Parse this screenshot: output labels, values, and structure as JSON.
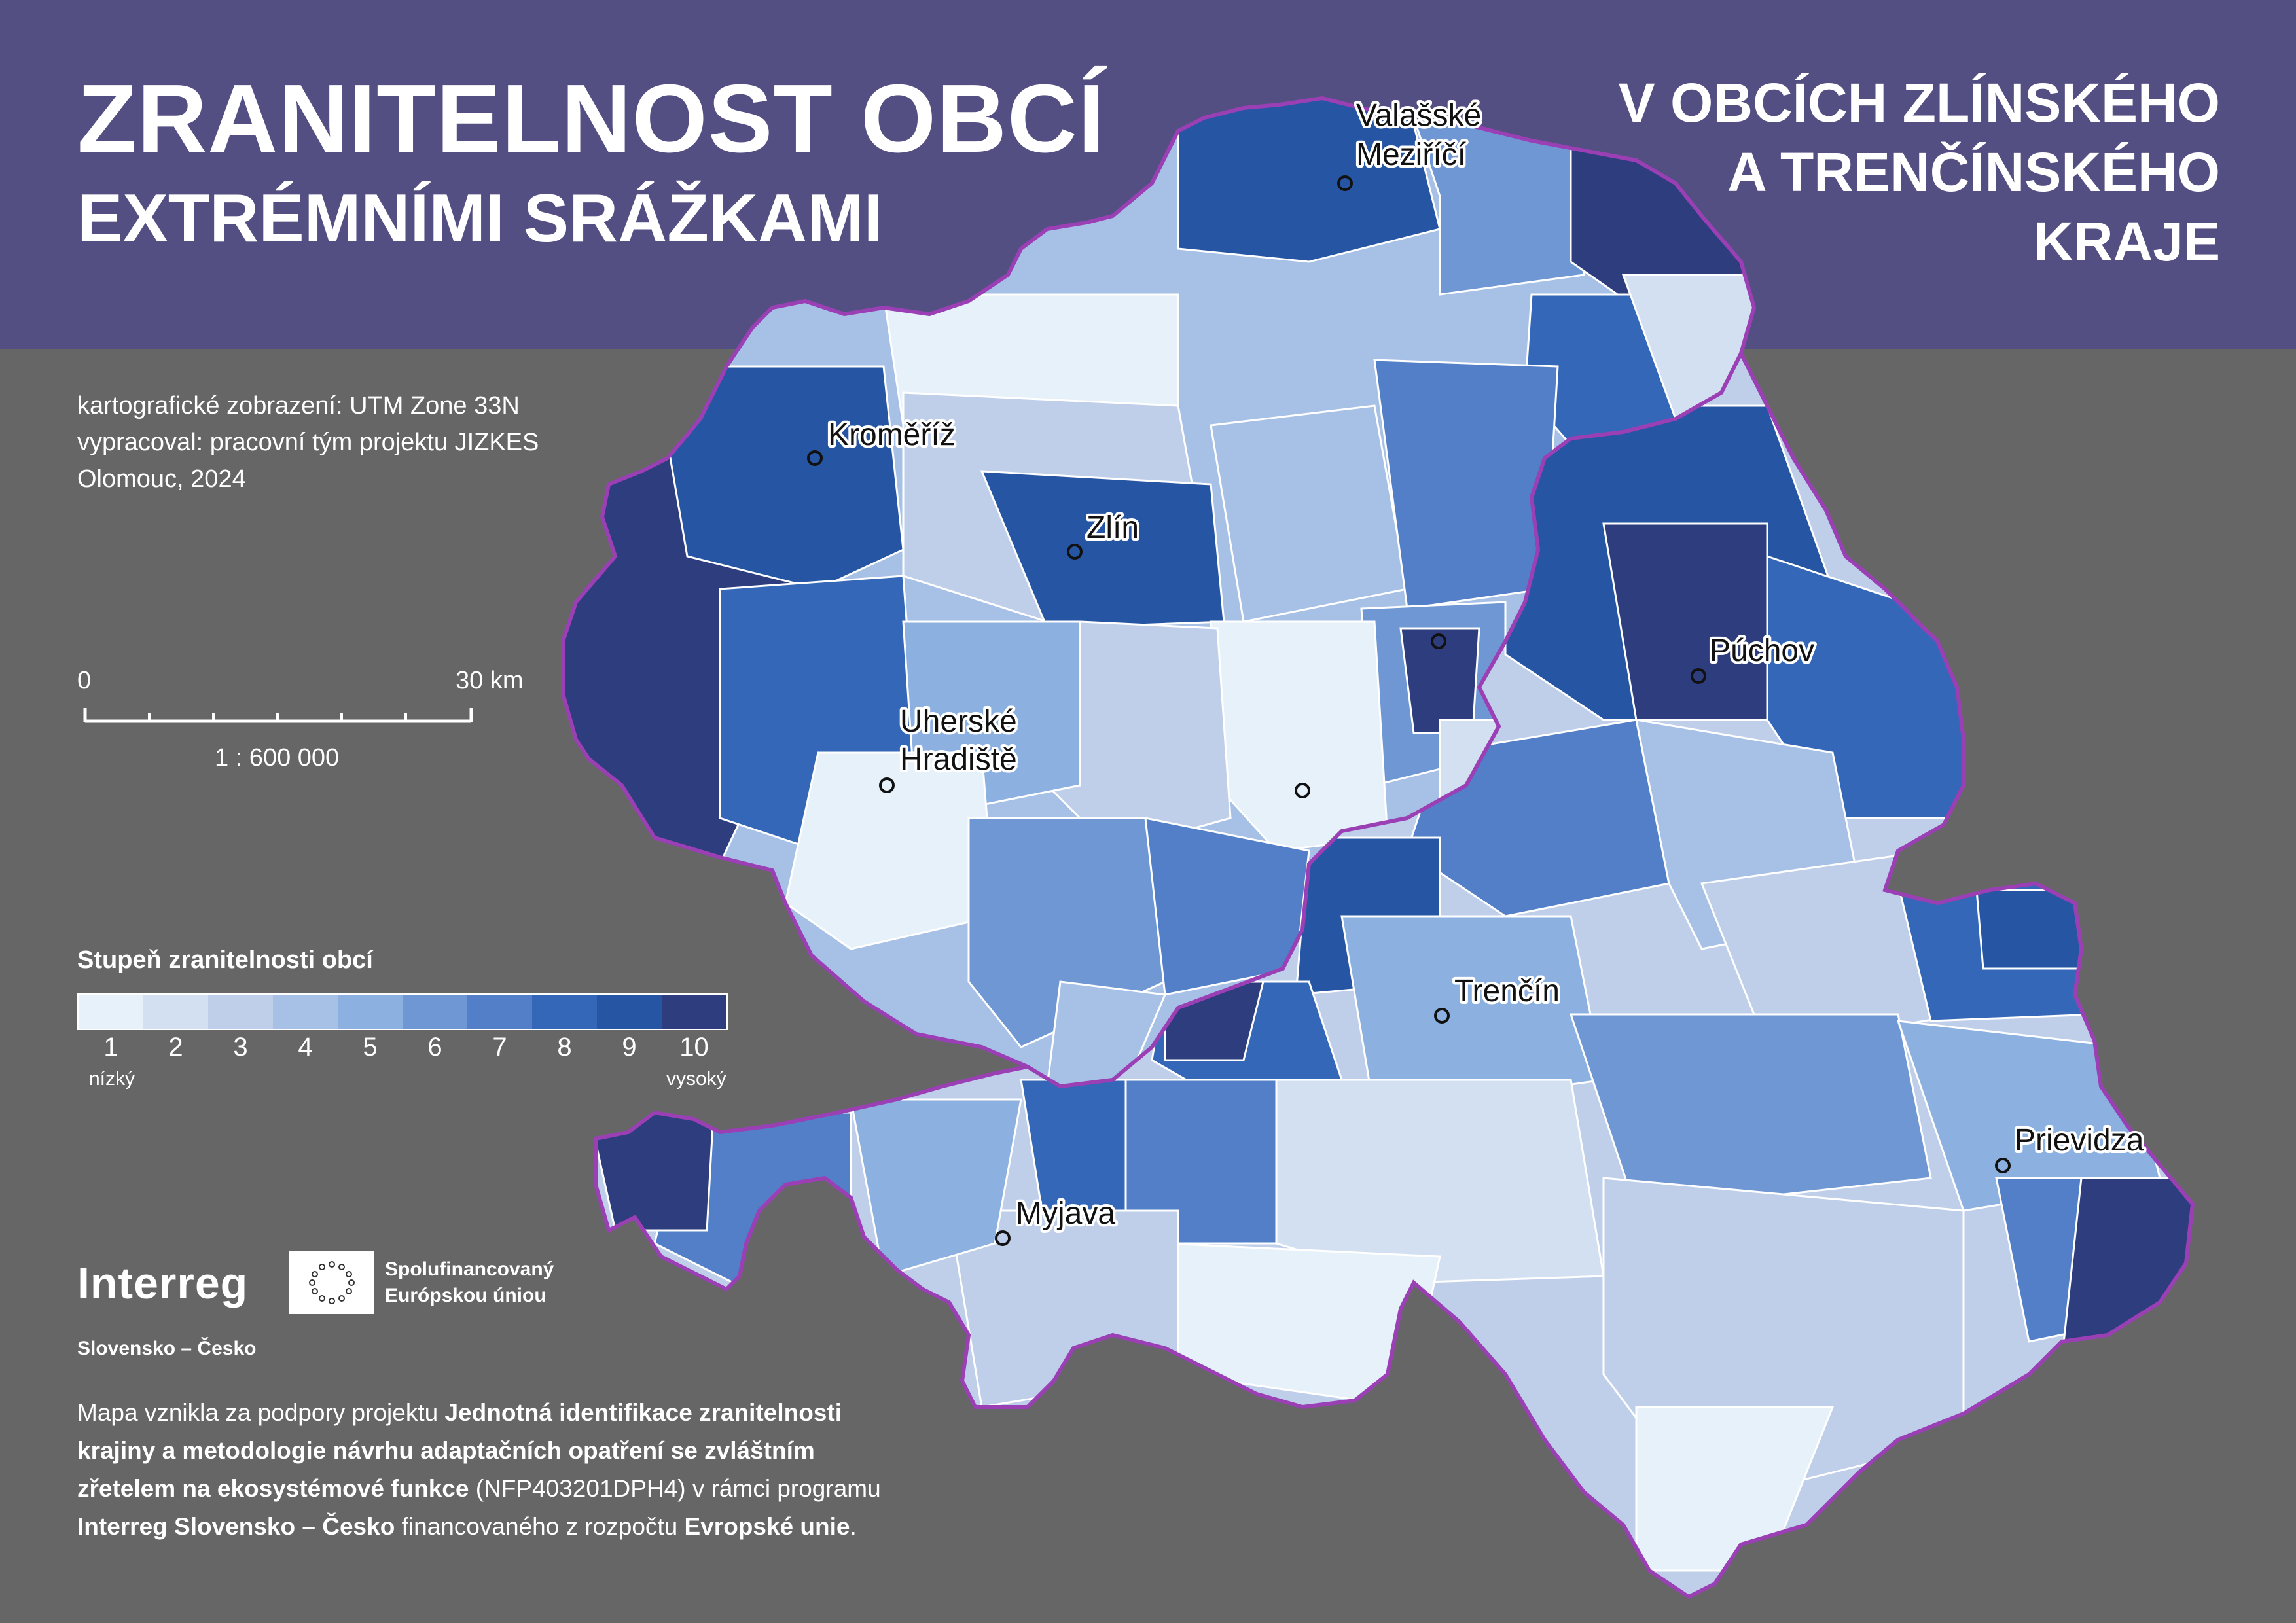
{
  "title": {
    "line1": "ZRANITELNOST OBCÍ",
    "line2": "EXTRÉMNÍMI SRÁŽKAMI"
  },
  "subtitle": {
    "line1": "V OBCÍCH ZLÍNSKÉHO",
    "line2": "A TRENČÍNSKÉHO",
    "line3": "KRAJE"
  },
  "meta": {
    "projection": "kartografické zobrazení: UTM Zone 33N",
    "author": "vypracoval: pracovní tým projektu JIZKES",
    "place_year": "Olomouc, 2024"
  },
  "scale_bar": {
    "start_label": "0",
    "end_label": "30 km",
    "ratio": "1 : 600 000"
  },
  "legend": {
    "title": "Stupeň zranitelnosti obcí",
    "low_label": "nízký",
    "high_label": "vysoký",
    "classes": [
      {
        "value": "1",
        "color": "#e6f1fa"
      },
      {
        "value": "2",
        "color": "#d2e0f1"
      },
      {
        "value": "3",
        "color": "#bfcfea"
      },
      {
        "value": "4",
        "color": "#a7c1e6"
      },
      {
        "value": "5",
        "color": "#8cb0df"
      },
      {
        "value": "6",
        "color": "#6f97d4"
      },
      {
        "value": "7",
        "color": "#527fc8"
      },
      {
        "value": "8",
        "color": "#3467b7"
      },
      {
        "value": "9",
        "color": "#2656a3"
      },
      {
        "value": "10",
        "color": "#2e3d7d"
      }
    ]
  },
  "cities": [
    {
      "name": "Valašské",
      "name2": "Meziříčí"
    },
    {
      "name": "Kroměříž"
    },
    {
      "name": "Zlín"
    },
    {
      "name": "Uherské",
      "name2": "Hradiště"
    },
    {
      "name": "Púchov"
    },
    {
      "name": "Trenčín"
    },
    {
      "name": "Prievidza"
    },
    {
      "name": "Myjava"
    }
  ],
  "logos": {
    "interreg": "Interreg",
    "interreg_sub": "Slovensko – Česko",
    "eu_line1": "Spolufinancovaný",
    "eu_line2": "Európskou úniou"
  },
  "footer": {
    "l1_a": "Mapa vznikla za podpory projektu ",
    "l1_b": "Jednotná identifikace zranitelnosti",
    "l2_b": "krajiny a metodologie návrhu adaptačních opatření se zvláštním",
    "l3_b": "zřetelem na ekosystémové funkce",
    "l3_c": " (NFP403201DPH4) v rámci programu",
    "l4_b": "Interreg Slovensko – Česko",
    "l4_c": " financovaného z rozpočtu ",
    "l4_d": "Evropské unie",
    "l4_e": "."
  },
  "colors": {
    "header_bg": "#544f82",
    "background": "#666666",
    "region_border": "#9b3fb5"
  }
}
